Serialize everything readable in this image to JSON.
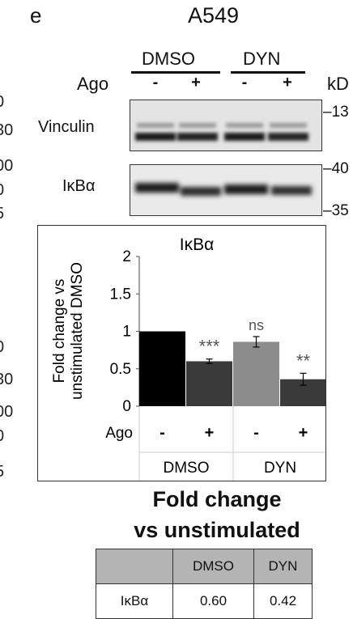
{
  "figure": {
    "panel_letter": "e",
    "cell_line": "A549",
    "group_labels": [
      "DMSO",
      "DYN"
    ],
    "treatment_label": "Ago",
    "lane_signs": [
      "-",
      "+",
      "-",
      "+"
    ],
    "unit_label": "kD",
    "left_edge_fragments": [
      "0",
      "30",
      "00",
      "0",
      "5",
      "0",
      "30",
      "00",
      "0",
      "5"
    ]
  },
  "blots": [
    {
      "label": "Vinculin",
      "markers": [
        "–13"
      ]
    },
    {
      "label": "IκBα",
      "markers": [
        "–40",
        "–35"
      ]
    }
  ],
  "chart_data": {
    "type": "bar",
    "title": "IκBα",
    "ylabel": "Fold change vs unstimulated DMSO",
    "ylim": [
      0,
      2
    ],
    "yticks": [
      "0",
      "0.5",
      "1",
      "1.5",
      "2"
    ],
    "x_row_label": "Ago",
    "categories": [
      "DMSO -",
      "DMSO +",
      "DYN -",
      "DYN +"
    ],
    "treatment_signs": [
      "-",
      "+",
      "-",
      "+"
    ],
    "groups": [
      "DMSO",
      "DYN"
    ],
    "values": [
      1.0,
      0.6,
      0.86,
      0.36
    ],
    "errors": [
      0.0,
      0.03,
      0.07,
      0.08
    ],
    "significance": [
      "",
      "***",
      "ns",
      "**"
    ],
    "bar_colors": [
      "#000000",
      "#3a3a3a",
      "#8c8c8c",
      "#3a3a3a"
    ]
  },
  "summary_table": {
    "title_line1": "Fold change",
    "title_line2": "vs unstimulated",
    "columns": [
      "",
      "DMSO",
      "DYN"
    ],
    "row_label": "IκBα",
    "values": [
      "0.60",
      "0.42"
    ],
    "header_color": "#b4b4b4"
  }
}
